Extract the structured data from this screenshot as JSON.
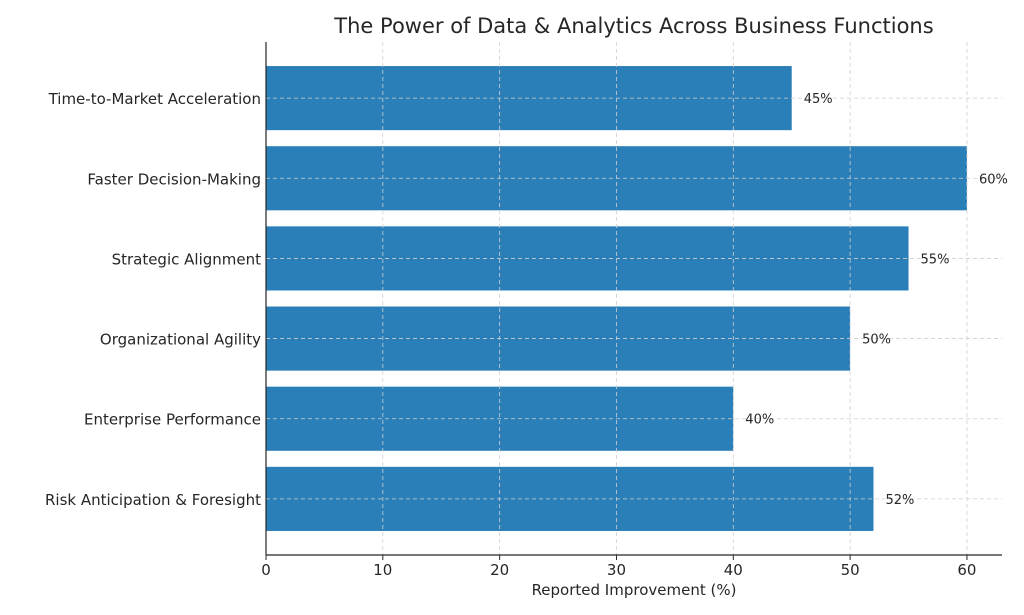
{
  "chart_data": {
    "type": "bar",
    "orientation": "horizontal",
    "title": "The Power of Data & Analytics Across Business Functions",
    "xlabel": "Reported Improvement (%)",
    "ylabel": "",
    "categories": [
      "Risk Anticipation & Foresight",
      "Enterprise Performance",
      "Organizational Agility",
      "Strategic Alignment",
      "Faster Decision-Making",
      "Time-to-Market Acceleration"
    ],
    "values": [
      52,
      40,
      50,
      55,
      60,
      45
    ],
    "data_labels": [
      "52%",
      "40%",
      "50%",
      "55%",
      "60%",
      "45%"
    ],
    "xlim": [
      0,
      63
    ],
    "xticks": [
      0,
      10,
      20,
      30,
      40,
      50,
      60
    ],
    "grid": true,
    "bar_color": "#2a7fb8"
  }
}
